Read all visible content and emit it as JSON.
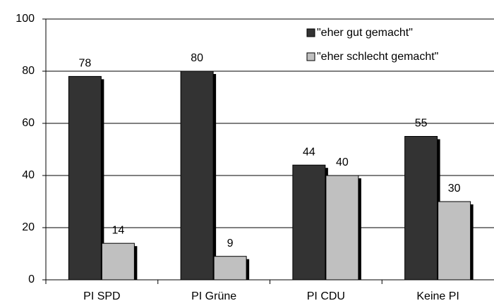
{
  "chart_data": {
    "type": "bar",
    "categories": [
      "PI SPD",
      "PI Grüne",
      "PI CDU",
      "Keine PI"
    ],
    "series": [
      {
        "name": "\"eher gut gemacht\"",
        "color": "#333333",
        "values": [
          78,
          80,
          44,
          55
        ]
      },
      {
        "name": "\"eher schlecht gemacht\"",
        "color": "#c0c0c0",
        "values": [
          14,
          9,
          40,
          30
        ]
      }
    ],
    "ylim": [
      0,
      100
    ],
    "yticks": [
      0,
      20,
      40,
      60,
      80,
      100
    ],
    "grid": true,
    "legend": "top-right"
  }
}
